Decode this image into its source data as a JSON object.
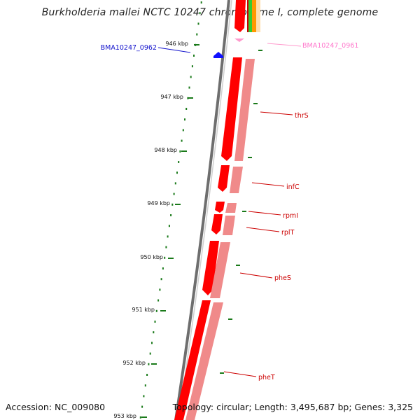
{
  "title": "Burkholderia mallei NCTC 10247 chromosome I, complete genome",
  "footer": {
    "accession": "Accession: NC_009080",
    "summary": "Topology: circular; Length: 3,495,687 bp; Genes: 3,325"
  },
  "colors": {
    "gene_cds": "#ff0000",
    "gene_cds_shadow": "#f08a8a",
    "gene_other": "#1010ff",
    "gene_pink": "#ff99cc",
    "tick": "#1a7a1a",
    "backbone": "#777777"
  },
  "ticks": [
    {
      "label": "946 kbp"
    },
    {
      "label": "947 kbp"
    },
    {
      "label": "948 kbp"
    },
    {
      "label": "949 kbp"
    },
    {
      "label": "950 kbp"
    },
    {
      "label": "951 kbp"
    },
    {
      "label": "952 kbp"
    },
    {
      "label": "953 kbp"
    }
  ],
  "genes": [
    {
      "name": "BMA10247_0962",
      "color": "#1010cc"
    },
    {
      "name": "BMA10247_0961",
      "color": "#ff77cc"
    },
    {
      "name": "thrS",
      "color": "#cc0000"
    },
    {
      "name": "infC",
      "color": "#cc0000"
    },
    {
      "name": "rpmI",
      "color": "#cc0000"
    },
    {
      "name": "rplT",
      "color": "#cc0000"
    },
    {
      "name": "pheS",
      "color": "#cc0000"
    },
    {
      "name": "pheT",
      "color": "#cc0000"
    }
  ]
}
